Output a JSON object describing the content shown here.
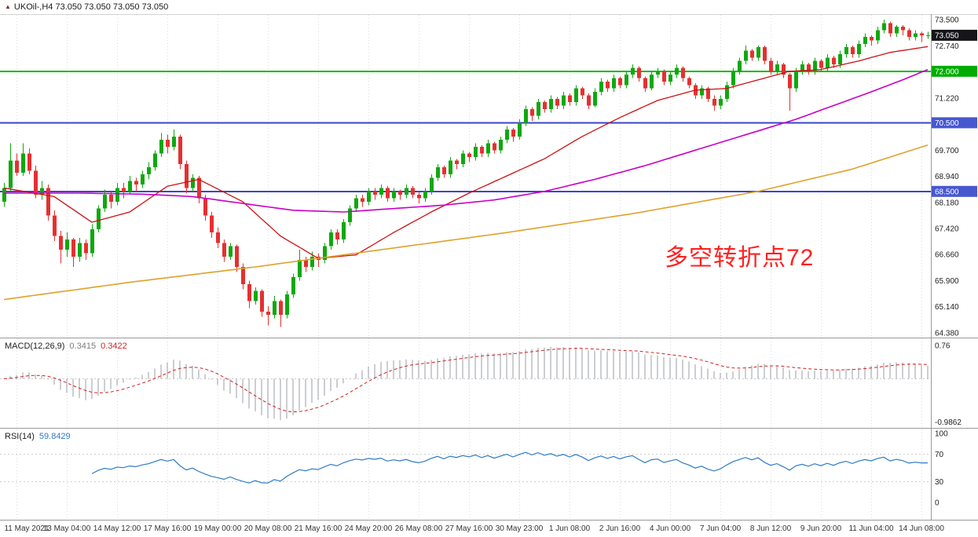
{
  "window": {
    "header": "UKOil-,H4 73.050 73.050 73.050 73.050"
  },
  "icons": {
    "header_marker": "▲"
  },
  "annotation": {
    "text": "多空转折点72",
    "color": "#FF2020"
  },
  "colors": {
    "up": "#0fa80f",
    "down": "#e53030",
    "ma_red": "#cc1111",
    "ma_magenta": "#c800c8",
    "ma_orange": "#dfa22b",
    "level_green": "#00bb00",
    "level_blue": "#3a45c8",
    "badge_current": "#15151a",
    "badge_green": "#00ac00",
    "badge_blue": "#4758cf",
    "macd_hist": "#abadb4",
    "macd_signal": "#d02020",
    "rsi_line": "#2e7bc4",
    "grid": "#dcdcdc",
    "separator": "#9a9a9a",
    "axis_text": "#222222",
    "time_text": "#333333"
  },
  "price_axis": {
    "ticks": [
      {
        "label": "73.500",
        "value": 73.5
      },
      {
        "label": "72.740",
        "value": 72.74
      },
      {
        "label": "71.220",
        "value": 71.22
      },
      {
        "label": "69.700",
        "value": 69.7
      },
      {
        "label": "68.940",
        "value": 68.94
      },
      {
        "label": "68.180",
        "value": 68.18
      },
      {
        "label": "67.420",
        "value": 67.42
      },
      {
        "label": "66.660",
        "value": 66.66
      },
      {
        "label": "65.900",
        "value": 65.9
      },
      {
        "label": "65.140",
        "value": 65.14
      },
      {
        "label": "64.380",
        "value": 64.38
      }
    ],
    "badges": [
      {
        "label": "73.050",
        "value": 73.05,
        "type": "current"
      },
      {
        "label": "72.000",
        "value": 72.0,
        "type": "green"
      },
      {
        "label": "70.500",
        "value": 70.5,
        "type": "blue"
      },
      {
        "label": "68.500",
        "value": 68.5,
        "type": "blue"
      }
    ]
  },
  "time_axis": {
    "labels": [
      "11 May 2021",
      "13 May 04:00",
      "14 May 12:00",
      "17 May 16:00",
      "19 May 00:00",
      "20 May 08:00",
      "21 May 16:00",
      "24 May 20:00",
      "26 May 08:00",
      "27 May 16:00",
      "30 May 23:00",
      "1 Jun 08:00",
      "2 Jun 16:00",
      "4 Jun 00:00",
      "7 Jun 04:00",
      "8 Jun 12:00",
      "9 Jun 20:00",
      "11 Jun 04:00",
      "14 Jun 08:00"
    ]
  },
  "chart_data": {
    "type": "candlestick",
    "title": "UKOil- H4",
    "symbol": "UKOil-",
    "timeframe": "H4",
    "current_price": 73.05,
    "y_range_visible": [
      64.24,
      73.62
    ],
    "levels": [
      {
        "value": 72.0,
        "color": "green"
      },
      {
        "value": 70.5,
        "color": "blue"
      },
      {
        "value": 68.5,
        "color": "blue"
      }
    ],
    "candles": [
      [
        68.2,
        68.75,
        68.05,
        68.6
      ],
      [
        68.6,
        69.9,
        68.5,
        69.4
      ],
      [
        69.4,
        69.6,
        68.95,
        69.05
      ],
      [
        69.05,
        69.9,
        68.95,
        69.6
      ],
      [
        69.6,
        69.75,
        69.0,
        69.1
      ],
      [
        69.1,
        69.25,
        68.3,
        68.4
      ],
      [
        68.4,
        68.8,
        68.25,
        68.6
      ],
      [
        68.6,
        68.7,
        67.65,
        67.8
      ],
      [
        67.8,
        67.95,
        67.05,
        67.2
      ],
      [
        67.2,
        67.35,
        66.4,
        66.8
      ],
      [
        66.8,
        67.3,
        66.6,
        67.1
      ],
      [
        67.1,
        67.15,
        66.3,
        66.6
      ],
      [
        66.6,
        67.15,
        66.45,
        67.0
      ],
      [
        67.0,
        67.1,
        66.5,
        66.7
      ],
      [
        66.7,
        67.55,
        66.6,
        67.4
      ],
      [
        67.4,
        68.1,
        67.3,
        68.0
      ],
      [
        68.0,
        68.55,
        67.9,
        68.4
      ],
      [
        68.4,
        68.5,
        68.0,
        68.2
      ],
      [
        68.2,
        68.75,
        68.1,
        68.6
      ],
      [
        68.6,
        68.75,
        68.3,
        68.5
      ],
      [
        68.5,
        68.95,
        68.4,
        68.8
      ],
      [
        68.8,
        68.9,
        68.5,
        68.7
      ],
      [
        68.7,
        69.1,
        68.6,
        69.0
      ],
      [
        69.0,
        69.35,
        68.85,
        69.2
      ],
      [
        69.2,
        69.7,
        69.1,
        69.6
      ],
      [
        69.6,
        70.2,
        69.5,
        70.0
      ],
      [
        70.0,
        70.15,
        69.6,
        69.8
      ],
      [
        69.8,
        70.3,
        69.7,
        70.1
      ],
      [
        70.1,
        70.15,
        69.15,
        69.3
      ],
      [
        69.3,
        69.4,
        68.45,
        68.6
      ],
      [
        68.6,
        69.0,
        68.5,
        68.9
      ],
      [
        68.9,
        68.95,
        68.15,
        68.3
      ],
      [
        68.3,
        68.4,
        67.65,
        67.8
      ],
      [
        67.8,
        67.9,
        67.15,
        67.3
      ],
      [
        67.3,
        67.45,
        66.85,
        67.0
      ],
      [
        67.0,
        67.1,
        66.45,
        66.6
      ],
      [
        66.6,
        67.0,
        66.5,
        66.9
      ],
      [
        66.9,
        66.95,
        66.15,
        66.3
      ],
      [
        66.3,
        66.4,
        65.65,
        65.8
      ],
      [
        65.8,
        65.9,
        65.1,
        65.3
      ],
      [
        65.3,
        65.7,
        65.2,
        65.6
      ],
      [
        65.6,
        65.65,
        64.85,
        65.0
      ],
      [
        65.0,
        65.15,
        64.6,
        64.9
      ],
      [
        64.9,
        65.45,
        64.8,
        65.3
      ],
      [
        65.3,
        65.35,
        64.55,
        64.9
      ],
      [
        64.9,
        65.6,
        64.8,
        65.5
      ],
      [
        65.5,
        66.1,
        65.4,
        66.0
      ],
      [
        66.0,
        66.8,
        65.9,
        66.5
      ],
      [
        66.5,
        66.6,
        66.15,
        66.3
      ],
      [
        66.3,
        66.75,
        66.2,
        66.6
      ],
      [
        66.6,
        66.7,
        66.3,
        66.5
      ],
      [
        66.5,
        67.0,
        66.4,
        66.9
      ],
      [
        66.9,
        67.4,
        66.8,
        67.3
      ],
      [
        67.3,
        67.4,
        66.95,
        67.1
      ],
      [
        67.1,
        67.7,
        67.0,
        67.6
      ],
      [
        67.6,
        68.1,
        67.5,
        68.0
      ],
      [
        68.0,
        68.4,
        67.9,
        68.3
      ],
      [
        68.3,
        68.4,
        68.05,
        68.2
      ],
      [
        68.2,
        68.6,
        68.1,
        68.5
      ],
      [
        68.5,
        68.6,
        68.25,
        68.4
      ],
      [
        68.4,
        68.7,
        68.3,
        68.6
      ],
      [
        68.6,
        68.65,
        68.2,
        68.3
      ],
      [
        68.3,
        68.6,
        68.2,
        68.5
      ],
      [
        68.5,
        68.55,
        68.25,
        68.4
      ],
      [
        68.4,
        68.7,
        68.3,
        68.6
      ],
      [
        68.6,
        68.65,
        68.3,
        68.4
      ],
      [
        68.4,
        68.5,
        68.15,
        68.3
      ],
      [
        68.3,
        68.6,
        68.2,
        68.5
      ],
      [
        68.5,
        69.0,
        68.4,
        68.9
      ],
      [
        68.9,
        69.3,
        68.8,
        69.2
      ],
      [
        69.2,
        69.25,
        68.9,
        69.0
      ],
      [
        69.0,
        69.5,
        68.9,
        69.4
      ],
      [
        69.4,
        69.45,
        69.15,
        69.3
      ],
      [
        69.3,
        69.7,
        69.2,
        69.6
      ],
      [
        69.6,
        69.65,
        69.35,
        69.5
      ],
      [
        69.5,
        69.9,
        69.4,
        69.8
      ],
      [
        69.8,
        69.85,
        69.5,
        69.6
      ],
      [
        69.6,
        70.0,
        69.5,
        69.9
      ],
      [
        69.9,
        69.95,
        69.6,
        69.7
      ],
      [
        69.7,
        70.1,
        69.6,
        70.0
      ],
      [
        70.0,
        70.4,
        69.9,
        70.3
      ],
      [
        70.3,
        70.35,
        69.95,
        70.1
      ],
      [
        70.1,
        70.6,
        70.0,
        70.5
      ],
      [
        70.5,
        71.0,
        70.4,
        70.9
      ],
      [
        70.9,
        70.95,
        70.55,
        70.7
      ],
      [
        70.7,
        71.2,
        70.6,
        71.1
      ],
      [
        71.1,
        71.15,
        70.8,
        70.9
      ],
      [
        70.9,
        71.3,
        70.8,
        71.2
      ],
      [
        71.2,
        71.25,
        70.9,
        71.0
      ],
      [
        71.0,
        71.4,
        70.9,
        71.3
      ],
      [
        71.3,
        71.35,
        71.0,
        71.1
      ],
      [
        71.1,
        71.6,
        71.0,
        71.5
      ],
      [
        71.5,
        71.55,
        71.2,
        71.3
      ],
      [
        71.3,
        71.35,
        70.9,
        71.0
      ],
      [
        71.0,
        71.5,
        70.95,
        71.4
      ],
      [
        71.4,
        71.8,
        71.3,
        71.7
      ],
      [
        71.7,
        71.75,
        71.4,
        71.5
      ],
      [
        71.5,
        71.9,
        71.4,
        71.8
      ],
      [
        71.8,
        71.85,
        71.5,
        71.6
      ],
      [
        71.6,
        72.0,
        71.5,
        71.9
      ],
      [
        71.9,
        72.2,
        71.8,
        72.1
      ],
      [
        72.1,
        72.15,
        71.7,
        71.8
      ],
      [
        71.8,
        71.85,
        71.4,
        71.5
      ],
      [
        71.5,
        72.0,
        71.45,
        71.9
      ],
      [
        71.9,
        72.1,
        71.8,
        72.0
      ],
      [
        72.0,
        72.05,
        71.6,
        71.7
      ],
      [
        71.7,
        72.0,
        71.6,
        71.9
      ],
      [
        71.9,
        72.2,
        71.8,
        72.1
      ],
      [
        72.1,
        72.15,
        71.7,
        71.8
      ],
      [
        71.8,
        71.85,
        71.5,
        71.6
      ],
      [
        71.6,
        71.65,
        71.2,
        71.3
      ],
      [
        71.3,
        71.6,
        71.2,
        71.5
      ],
      [
        71.5,
        71.55,
        71.1,
        71.2
      ],
      [
        71.2,
        71.3,
        70.85,
        71.0
      ],
      [
        71.0,
        71.3,
        70.9,
        71.2
      ],
      [
        71.2,
        71.7,
        71.1,
        71.6
      ],
      [
        71.6,
        72.1,
        71.5,
        72.0
      ],
      [
        72.0,
        72.4,
        71.9,
        72.3
      ],
      [
        72.3,
        72.75,
        72.2,
        72.6
      ],
      [
        72.6,
        72.65,
        72.3,
        72.4
      ],
      [
        72.4,
        72.75,
        72.3,
        72.7
      ],
      [
        72.7,
        72.75,
        72.2,
        72.3
      ],
      [
        72.3,
        72.4,
        71.9,
        72.0
      ],
      [
        72.0,
        72.3,
        71.9,
        72.2
      ],
      [
        72.2,
        72.25,
        71.8,
        71.9
      ],
      [
        71.9,
        71.95,
        70.85,
        71.5
      ],
      [
        71.5,
        72.1,
        71.4,
        72.0
      ],
      [
        72.0,
        72.3,
        71.9,
        72.2
      ],
      [
        72.2,
        72.25,
        71.9,
        72.0
      ],
      [
        72.0,
        72.4,
        71.9,
        72.3
      ],
      [
        72.3,
        72.35,
        72.0,
        72.1
      ],
      [
        72.1,
        72.5,
        72.0,
        72.4
      ],
      [
        72.4,
        72.45,
        72.1,
        72.2
      ],
      [
        72.2,
        72.6,
        72.1,
        72.5
      ],
      [
        72.5,
        72.8,
        72.4,
        72.7
      ],
      [
        72.7,
        72.75,
        72.4,
        72.5
      ],
      [
        72.5,
        72.9,
        72.4,
        72.8
      ],
      [
        72.8,
        73.1,
        72.7,
        73.0
      ],
      [
        73.0,
        73.05,
        72.75,
        72.9
      ],
      [
        72.9,
        73.3,
        72.8,
        73.2
      ],
      [
        73.2,
        73.5,
        73.1,
        73.4
      ],
      [
        73.4,
        73.45,
        73.0,
        73.1
      ],
      [
        73.1,
        73.35,
        73.0,
        73.3
      ],
      [
        73.3,
        73.35,
        73.05,
        73.2
      ],
      [
        73.2,
        73.25,
        72.9,
        73.0
      ],
      [
        73.0,
        73.2,
        72.9,
        73.1
      ],
      [
        73.1,
        73.15,
        72.85,
        73.05
      ],
      [
        73.05,
        73.15,
        72.95,
        73.05
      ]
    ],
    "moving_averages": [
      {
        "name": "fast-red",
        "points": [
          [
            0,
            68.6
          ],
          [
            8,
            68.35
          ],
          [
            14,
            67.6
          ],
          [
            20,
            67.9
          ],
          [
            26,
            68.65
          ],
          [
            31,
            68.85
          ],
          [
            38,
            68.2
          ],
          [
            44,
            67.2
          ],
          [
            50,
            66.55
          ],
          [
            56,
            66.65
          ],
          [
            62,
            67.3
          ],
          [
            68,
            67.9
          ],
          [
            74,
            68.45
          ],
          [
            80,
            68.95
          ],
          [
            86,
            69.45
          ],
          [
            92,
            70.1
          ],
          [
            98,
            70.65
          ],
          [
            104,
            71.15
          ],
          [
            110,
            71.45
          ],
          [
            115,
            71.5
          ],
          [
            120,
            71.75
          ],
          [
            125,
            72.0
          ],
          [
            130,
            72.05
          ],
          [
            136,
            72.3
          ],
          [
            141,
            72.55
          ],
          [
            147,
            72.72
          ]
        ]
      },
      {
        "name": "mid-magenta",
        "points": [
          [
            0,
            68.45
          ],
          [
            12,
            68.45
          ],
          [
            22,
            68.42
          ],
          [
            30,
            68.35
          ],
          [
            38,
            68.15
          ],
          [
            46,
            67.95
          ],
          [
            54,
            67.9
          ],
          [
            62,
            68.0
          ],
          [
            70,
            68.1
          ],
          [
            78,
            68.25
          ],
          [
            86,
            68.5
          ],
          [
            94,
            68.85
          ],
          [
            102,
            69.25
          ],
          [
            110,
            69.7
          ],
          [
            118,
            70.15
          ],
          [
            126,
            70.6
          ],
          [
            132,
            71.0
          ],
          [
            138,
            71.4
          ],
          [
            143,
            71.75
          ],
          [
            147,
            72.05
          ]
        ]
      },
      {
        "name": "slow-orange",
        "points": [
          [
            0,
            65.35
          ],
          [
            20,
            65.85
          ],
          [
            40,
            66.3
          ],
          [
            60,
            66.8
          ],
          [
            80,
            67.3
          ],
          [
            100,
            67.85
          ],
          [
            120,
            68.5
          ],
          [
            135,
            69.15
          ],
          [
            147,
            69.85
          ]
        ]
      }
    ],
    "indicators": {
      "macd": {
        "label": "MACD(12,26,9)",
        "value_main": "0.3415",
        "value_signal": "0.3422",
        "range": [
          -1.08,
          0.9
        ],
        "axis_labels": [
          {
            "label": "0.76",
            "value": 0.76
          },
          {
            "label": "-0.9862",
            "value": -0.9862
          }
        ]
      },
      "rsi": {
        "label": "RSI(14)",
        "value": "59.8429",
        "range": [
          0,
          100
        ],
        "guides": [
          70,
          30
        ],
        "axis_labels": [
          {
            "label": "100",
            "value": 100
          },
          {
            "label": "70",
            "value": 70
          },
          {
            "label": "30",
            "value": 30
          },
          {
            "label": "0",
            "value": 0
          }
        ]
      }
    }
  }
}
